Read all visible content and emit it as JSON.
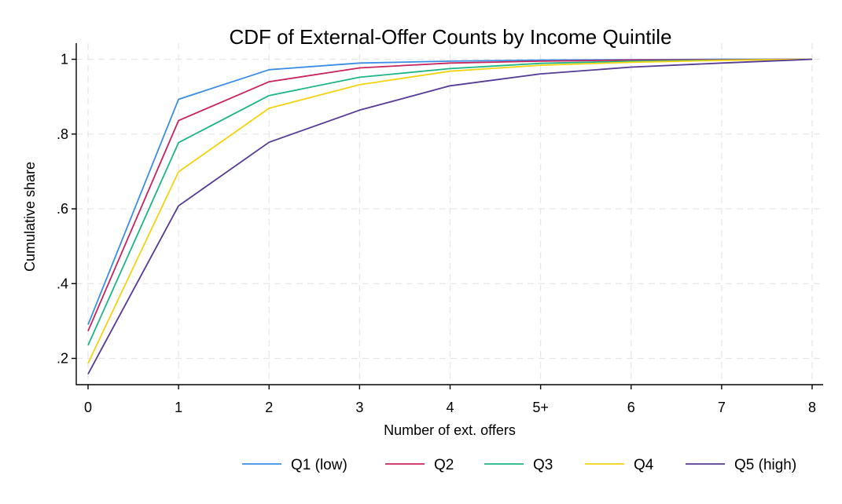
{
  "chart_data": {
    "type": "line",
    "title": "CDF of External-Offer Counts by Income Quintile",
    "xlabel": "Number of ext. offers",
    "ylabel": "Cumulative share",
    "x": [
      0,
      1,
      2,
      3,
      4,
      5,
      6,
      7,
      8
    ],
    "x_tick_labels": [
      "0",
      "1",
      "2",
      "3",
      "4",
      "5+",
      "6",
      "7",
      "8"
    ],
    "y_ticks": [
      0.2,
      0.4,
      0.6,
      0.8,
      1.0
    ],
    "y_tick_labels": [
      ".2",
      ".4",
      ".6",
      ".8",
      "1"
    ],
    "xlim": [
      0,
      8
    ],
    "ylim": [
      0.13,
      1.0
    ],
    "grid": true,
    "legend_position": "bottom",
    "series": [
      {
        "name": "Q1 (low)",
        "color": "#3a8ee6",
        "values": [
          0.29,
          0.893,
          0.972,
          0.99,
          0.995,
          0.998,
          0.999,
          1.0,
          1.0
        ]
      },
      {
        "name": "Q2",
        "color": "#c9245c",
        "values": [
          0.273,
          0.836,
          0.94,
          0.977,
          0.99,
          0.995,
          0.998,
          0.999,
          1.0
        ]
      },
      {
        "name": "Q3",
        "color": "#1db587",
        "values": [
          0.235,
          0.777,
          0.903,
          0.952,
          0.975,
          0.989,
          0.995,
          0.998,
          1.0
        ]
      },
      {
        "name": "Q4",
        "color": "#f5d312",
        "values": [
          0.187,
          0.699,
          0.869,
          0.932,
          0.968,
          0.984,
          0.992,
          0.997,
          1.0
        ]
      },
      {
        "name": "Q5 (high)",
        "color": "#553a96",
        "values": [
          0.158,
          0.608,
          0.778,
          0.864,
          0.929,
          0.961,
          0.979,
          0.99,
          1.0
        ]
      }
    ]
  }
}
